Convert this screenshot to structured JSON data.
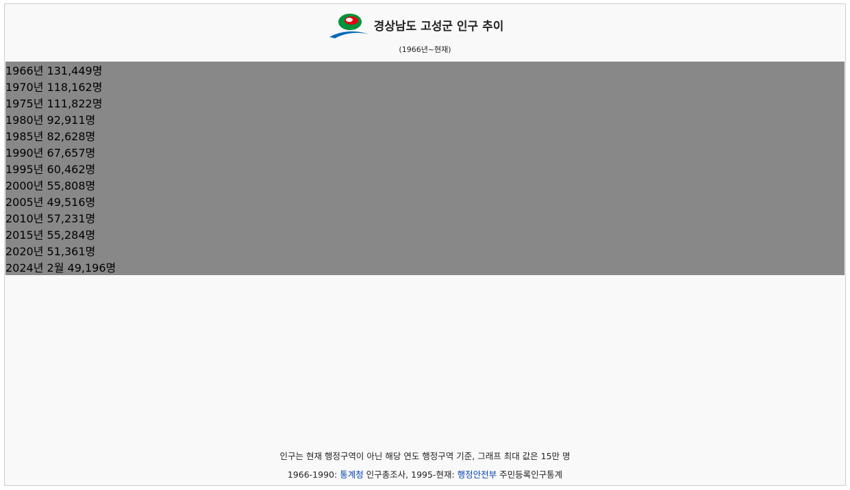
{
  "chart_data": {
    "type": "bar",
    "orientation": "horizontal",
    "title": "경상남도 고성군 인구 추이",
    "subtitle": "(1966년~현재)",
    "categories": [
      "1966년",
      "1970년",
      "1975년",
      "1980년",
      "1985년",
      "1990년",
      "1995년",
      "2000년",
      "2005년",
      "2010년",
      "2015년",
      "2020년",
      "2024년 2월"
    ],
    "values": [
      131449,
      118162,
      111822,
      92911,
      82628,
      67657,
      60462,
      55808,
      49516,
      57231,
      55284,
      51361,
      49196
    ],
    "value_labels": [
      "131,449명",
      "118,162명",
      "111,822명",
      "92,911명",
      "82,628명",
      "67,657명",
      "60,462명",
      "55,808명",
      "49,516명",
      "57,231명",
      "55,284명",
      "51,361명",
      "49,196명"
    ],
    "color": "#009b5e",
    "background_color": "#888888",
    "xlim": [
      0,
      150000
    ],
    "note": "인구는 현재 행정구역이 아닌 해당 연도 행정구역 기준, 그래프 최대 값은 15만 명",
    "sources": [
      "1966-1990: ",
      "통계청",
      " 인구총조사, 1995-현재: ",
      "행정안전부",
      " 주민등록인구통계"
    ]
  }
}
